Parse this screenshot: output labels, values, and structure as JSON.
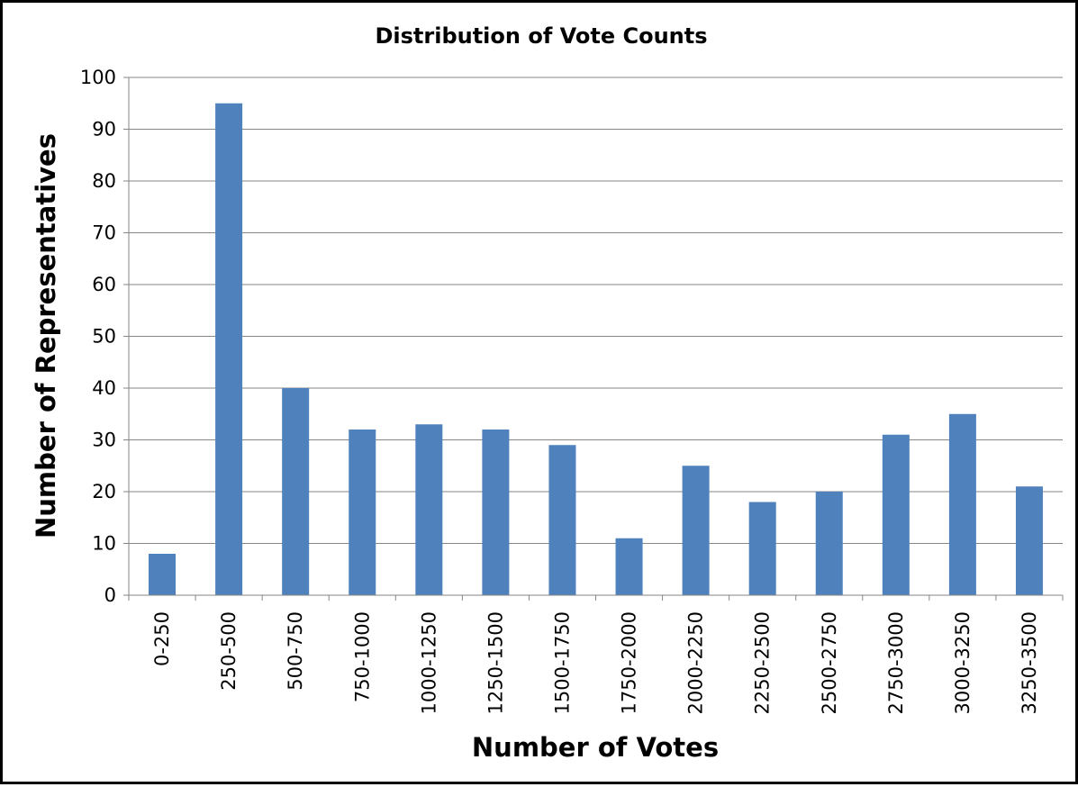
{
  "chart_data": {
    "type": "bar",
    "title": "Distribution of Vote Counts",
    "xlabel": "Number of Votes",
    "ylabel": "Number of Representatives",
    "categories": [
      "0-250",
      "250-500",
      "500-750",
      "750-1000",
      "1000-1250",
      "1250-1500",
      "1500-1750",
      "1750-2000",
      "2000-2250",
      "2250-2500",
      "2500-2750",
      "2750-3000",
      "3000-3250",
      "3250-3500"
    ],
    "values": [
      8,
      95,
      40,
      32,
      33,
      32,
      29,
      11,
      25,
      18,
      20,
      31,
      35,
      21
    ],
    "ylim": [
      0,
      100
    ],
    "yticks": [
      "0",
      "10",
      "20",
      "30",
      "40",
      "50",
      "60",
      "70",
      "80",
      "90",
      "100"
    ],
    "grid": true,
    "bar_color": "#4F81BD",
    "grid_color": "#868686"
  }
}
